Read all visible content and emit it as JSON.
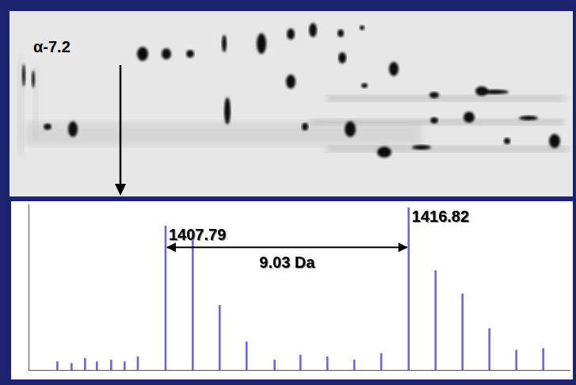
{
  "gel": {
    "label": "α-7.2"
  },
  "chart_data": {
    "type": "bar",
    "x": [
      1403.77,
      1404.3,
      1404.8,
      1405.24,
      1405.77,
      1406.27,
      1406.76,
      1407.79,
      1408.8,
      1409.8,
      1410.8,
      1411.84,
      1412.8,
      1413.8,
      1414.8,
      1415.8,
      1416.82,
      1417.82,
      1418.82,
      1419.82,
      1420.82,
      1421.82
    ],
    "values": [
      5,
      4,
      7,
      5,
      6,
      5,
      8,
      87,
      84,
      39,
      17,
      6,
      9,
      8,
      6,
      10,
      98,
      60,
      46,
      25,
      12,
      13
    ],
    "color": "#6a6ad8",
    "xlim": [
      1402.7,
      1422.8
    ],
    "ylim": [
      0,
      100
    ],
    "grid": false,
    "tick_labels": false,
    "peak_labels": [
      1407.79,
      1416.82
    ],
    "annotation": {
      "text": "9.03 Da",
      "from": 1407.79,
      "to": 1416.82
    }
  }
}
